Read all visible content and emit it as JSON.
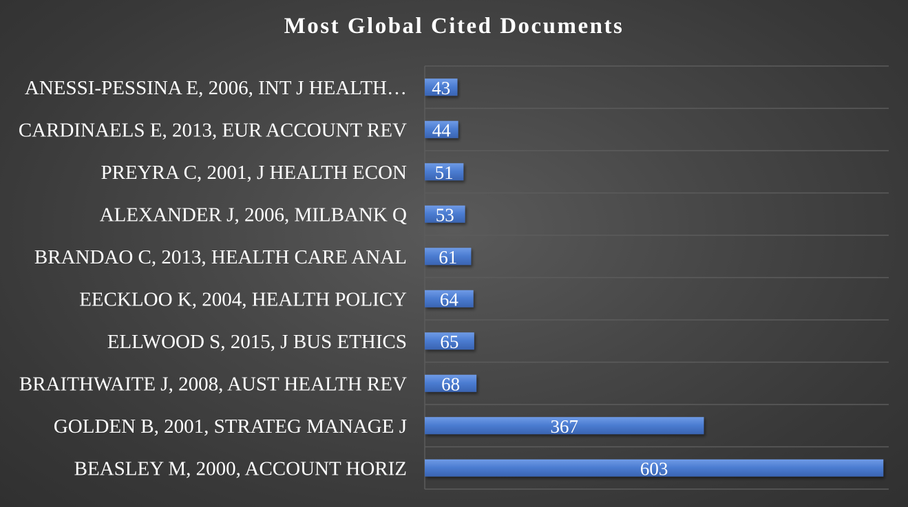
{
  "chart_data": {
    "type": "bar",
    "orientation": "horizontal",
    "title": "Most Global Cited Documents",
    "categories": [
      "ANESSI-PESSINA E, 2006, INT J HEALTH…",
      "CARDINAELS E, 2013, EUR ACCOUNT REV",
      "PREYRA C, 2001, J HEALTH ECON",
      "ALEXANDER J, 2006, MILBANK Q",
      "BRANDAO C, 2013, HEALTH CARE ANAL",
      "EECKLOO K, 2004, HEALTH POLICY",
      "ELLWOOD S, 2015, J BUS ETHICS",
      "BRAITHWAITE J, 2008, AUST HEALTH REV",
      "GOLDEN B, 2001, STRATEG MANAGE J",
      "BEASLEY M, 2000, ACCOUNT HORIZ"
    ],
    "values": [
      43,
      44,
      51,
      53,
      61,
      64,
      65,
      68,
      367,
      603
    ],
    "xlim": [
      0,
      610
    ],
    "data_labels": true,
    "grid": "horizontal",
    "legend": "none",
    "colors": {
      "bar": "#4472c4",
      "bar_light": "#5b8ad6",
      "label_text": "#ffffff",
      "gridline": "#5c5c5c"
    }
  }
}
